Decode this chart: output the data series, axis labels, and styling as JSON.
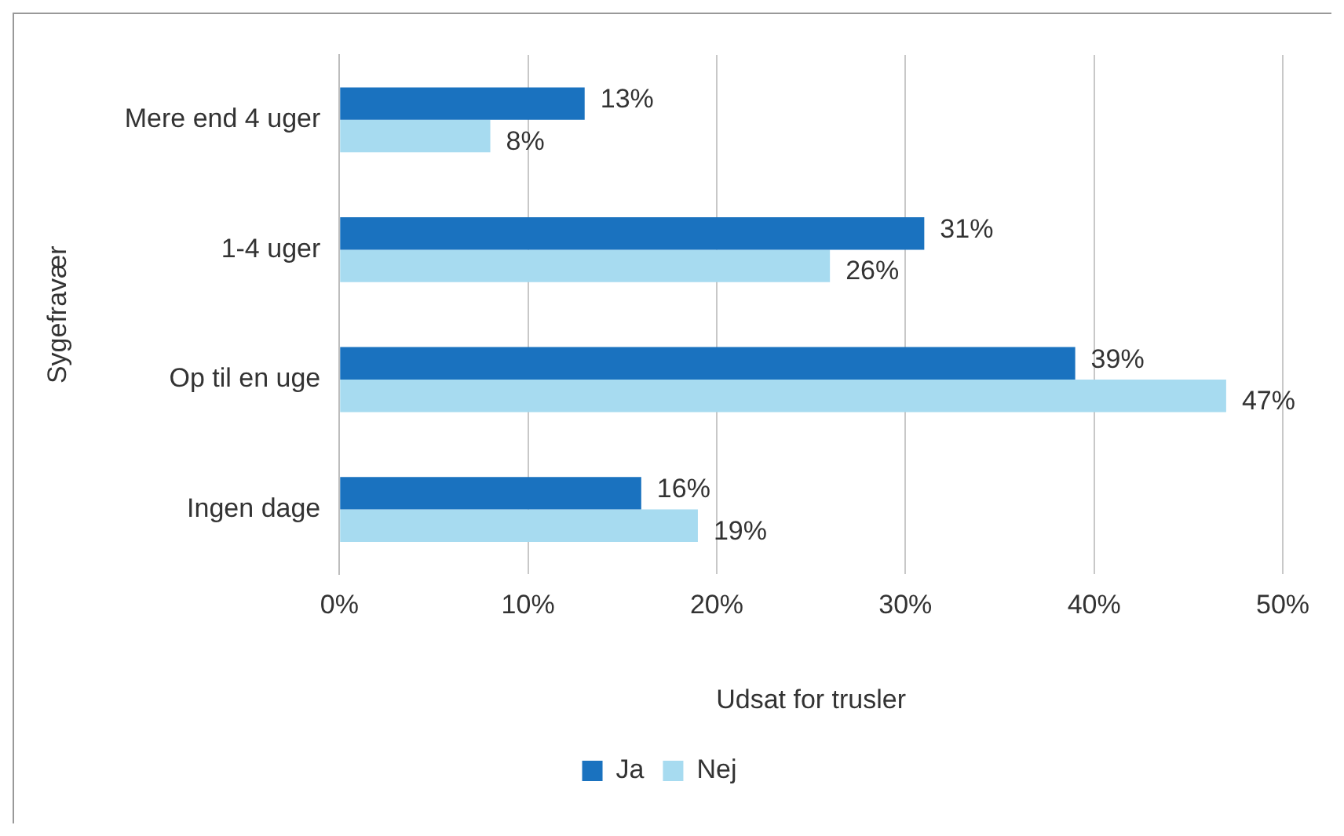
{
  "chart_data": {
    "type": "bar",
    "orientation": "horizontal",
    "xlabel": "Udsat for trusler",
    "ylabel": "Sygefravær",
    "categories": [
      "Mere end 4 uger",
      "1-4 uger",
      "Op til en uge",
      "Ingen dage"
    ],
    "series": [
      {
        "name": "Ja",
        "color": "#1a72bf",
        "values": [
          13,
          31,
          39,
          16
        ],
        "value_labels": [
          "13%",
          "31%",
          "39%",
          "16%"
        ]
      },
      {
        "name": "Nej",
        "color": "#a7dbf0",
        "values": [
          8,
          26,
          47,
          19
        ],
        "value_labels": [
          "8%",
          "26%",
          "47%",
          "19%"
        ]
      }
    ],
    "xlim": [
      0,
      50
    ],
    "xticks": [
      {
        "value": 0,
        "label": "0%"
      },
      {
        "value": 10,
        "label": "10%"
      },
      {
        "value": 20,
        "label": "20%"
      },
      {
        "value": 30,
        "label": "30%"
      },
      {
        "value": 40,
        "label": "40%"
      },
      {
        "value": 50,
        "label": "50%"
      }
    ],
    "grid": "x",
    "legend": "bottom"
  }
}
